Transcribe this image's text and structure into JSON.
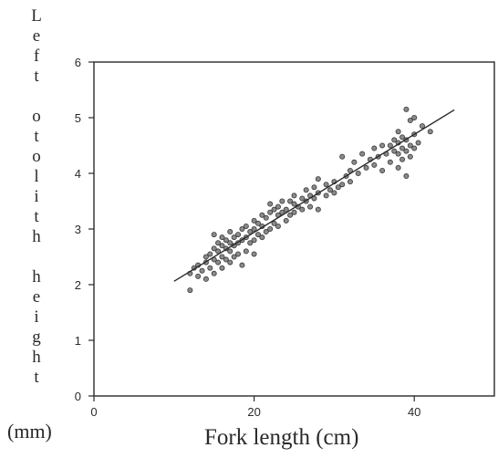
{
  "chart_data": {
    "type": "scatter",
    "title": "",
    "xlabel": "Fork length (cm)",
    "ylabel": "Left otolith height",
    "ylabel_unit": "(mm)",
    "xlim": [
      0,
      50
    ],
    "ylim": [
      0,
      6
    ],
    "xticks": [
      0,
      20,
      40
    ],
    "yticks": [
      0,
      1,
      2,
      3,
      4,
      5,
      6
    ],
    "grid": false,
    "legend": "none",
    "regression_line": {
      "x": [
        10,
        45
      ],
      "y": [
        2.06,
        5.14
      ]
    },
    "points": [
      {
        "x": 12,
        "y": 1.9
      },
      {
        "x": 12,
        "y": 2.2
      },
      {
        "x": 12.5,
        "y": 2.3
      },
      {
        "x": 13,
        "y": 2.15
      },
      {
        "x": 13,
        "y": 2.35
      },
      {
        "x": 13.5,
        "y": 2.25
      },
      {
        "x": 14,
        "y": 2.1
      },
      {
        "x": 14,
        "y": 2.4
      },
      {
        "x": 14,
        "y": 2.5
      },
      {
        "x": 14.5,
        "y": 2.3
      },
      {
        "x": 14.5,
        "y": 2.55
      },
      {
        "x": 15,
        "y": 2.2
      },
      {
        "x": 15,
        "y": 2.45
      },
      {
        "x": 15,
        "y": 2.65
      },
      {
        "x": 15,
        "y": 2.9
      },
      {
        "x": 15.5,
        "y": 2.4
      },
      {
        "x": 15.5,
        "y": 2.6
      },
      {
        "x": 15.5,
        "y": 2.75
      },
      {
        "x": 16,
        "y": 2.3
      },
      {
        "x": 16,
        "y": 2.5
      },
      {
        "x": 16,
        "y": 2.7
      },
      {
        "x": 16,
        "y": 2.85
      },
      {
        "x": 16.5,
        "y": 2.45
      },
      {
        "x": 16.5,
        "y": 2.65
      },
      {
        "x": 16.5,
        "y": 2.8
      },
      {
        "x": 17,
        "y": 2.4
      },
      {
        "x": 17,
        "y": 2.6
      },
      {
        "x": 17,
        "y": 2.75
      },
      {
        "x": 17,
        "y": 2.95
      },
      {
        "x": 17.5,
        "y": 2.5
      },
      {
        "x": 17.5,
        "y": 2.7
      },
      {
        "x": 17.5,
        "y": 2.85
      },
      {
        "x": 18,
        "y": 2.55
      },
      {
        "x": 18,
        "y": 2.75
      },
      {
        "x": 18,
        "y": 2.9
      },
      {
        "x": 18.5,
        "y": 2.35
      },
      {
        "x": 18.5,
        "y": 2.8
      },
      {
        "x": 18.5,
        "y": 3.0
      },
      {
        "x": 19,
        "y": 2.6
      },
      {
        "x": 19,
        "y": 2.85
      },
      {
        "x": 19,
        "y": 3.05
      },
      {
        "x": 19.5,
        "y": 2.75
      },
      {
        "x": 19.5,
        "y": 2.95
      },
      {
        "x": 20,
        "y": 2.55
      },
      {
        "x": 20,
        "y": 2.8
      },
      {
        "x": 20,
        "y": 3.0
      },
      {
        "x": 20,
        "y": 3.15
      },
      {
        "x": 20.5,
        "y": 2.9
      },
      {
        "x": 20.5,
        "y": 3.1
      },
      {
        "x": 21,
        "y": 2.85
      },
      {
        "x": 21,
        "y": 3.05
      },
      {
        "x": 21,
        "y": 3.25
      },
      {
        "x": 21.5,
        "y": 2.95
      },
      {
        "x": 21.5,
        "y": 3.2
      },
      {
        "x": 22,
        "y": 3.0
      },
      {
        "x": 22,
        "y": 3.3
      },
      {
        "x": 22,
        "y": 3.45
      },
      {
        "x": 22.5,
        "y": 3.1
      },
      {
        "x": 22.5,
        "y": 3.35
      },
      {
        "x": 23,
        "y": 3.05
      },
      {
        "x": 23,
        "y": 3.25
      },
      {
        "x": 23,
        "y": 3.4
      },
      {
        "x": 23.5,
        "y": 3.3
      },
      {
        "x": 23.5,
        "y": 3.5
      },
      {
        "x": 24,
        "y": 3.15
      },
      {
        "x": 24,
        "y": 3.35
      },
      {
        "x": 24.5,
        "y": 3.25
      },
      {
        "x": 24.5,
        "y": 3.5
      },
      {
        "x": 25,
        "y": 3.3
      },
      {
        "x": 25,
        "y": 3.45
      },
      {
        "x": 25,
        "y": 3.6
      },
      {
        "x": 25.5,
        "y": 3.4
      },
      {
        "x": 26,
        "y": 3.35
      },
      {
        "x": 26,
        "y": 3.55
      },
      {
        "x": 26.5,
        "y": 3.5
      },
      {
        "x": 26.5,
        "y": 3.7
      },
      {
        "x": 27,
        "y": 3.4
      },
      {
        "x": 27,
        "y": 3.6
      },
      {
        "x": 27.5,
        "y": 3.55
      },
      {
        "x": 27.5,
        "y": 3.75
      },
      {
        "x": 28,
        "y": 3.35
      },
      {
        "x": 28,
        "y": 3.65
      },
      {
        "x": 28,
        "y": 3.9
      },
      {
        "x": 29,
        "y": 3.6
      },
      {
        "x": 29,
        "y": 3.8
      },
      {
        "x": 29.5,
        "y": 3.7
      },
      {
        "x": 30,
        "y": 3.65
      },
      {
        "x": 30,
        "y": 3.85
      },
      {
        "x": 30.5,
        "y": 3.75
      },
      {
        "x": 31,
        "y": 3.8
      },
      {
        "x": 31,
        "y": 4.3
      },
      {
        "x": 31.5,
        "y": 3.95
      },
      {
        "x": 32,
        "y": 3.85
      },
      {
        "x": 32,
        "y": 4.05
      },
      {
        "x": 32.5,
        "y": 4.2
      },
      {
        "x": 33,
        "y": 4.0
      },
      {
        "x": 33.5,
        "y": 4.35
      },
      {
        "x": 34,
        "y": 4.1
      },
      {
        "x": 34.5,
        "y": 4.25
      },
      {
        "x": 35,
        "y": 4.15
      },
      {
        "x": 35,
        "y": 4.45
      },
      {
        "x": 35.5,
        "y": 4.3
      },
      {
        "x": 36,
        "y": 4.05
      },
      {
        "x": 36,
        "y": 4.5
      },
      {
        "x": 36.5,
        "y": 4.35
      },
      {
        "x": 37,
        "y": 4.2
      },
      {
        "x": 37,
        "y": 4.5
      },
      {
        "x": 37.5,
        "y": 4.4
      },
      {
        "x": 37.5,
        "y": 4.6
      },
      {
        "x": 38,
        "y": 4.1
      },
      {
        "x": 38,
        "y": 4.35
      },
      {
        "x": 38,
        "y": 4.55
      },
      {
        "x": 38,
        "y": 4.75
      },
      {
        "x": 38.5,
        "y": 4.25
      },
      {
        "x": 38.5,
        "y": 4.45
      },
      {
        "x": 38.5,
        "y": 4.65
      },
      {
        "x": 39,
        "y": 3.95
      },
      {
        "x": 39,
        "y": 4.4
      },
      {
        "x": 39,
        "y": 4.6
      },
      {
        "x": 39,
        "y": 5.15
      },
      {
        "x": 39.5,
        "y": 4.3
      },
      {
        "x": 39.5,
        "y": 4.5
      },
      {
        "x": 39.5,
        "y": 4.95
      },
      {
        "x": 40,
        "y": 4.45
      },
      {
        "x": 40,
        "y": 4.7
      },
      {
        "x": 40,
        "y": 5.0
      },
      {
        "x": 40.5,
        "y": 4.55
      },
      {
        "x": 41,
        "y": 4.85
      },
      {
        "x": 42,
        "y": 4.75
      }
    ]
  }
}
